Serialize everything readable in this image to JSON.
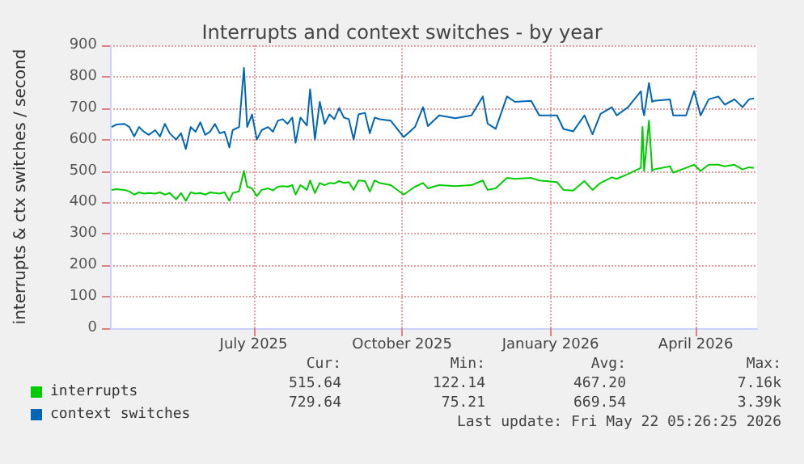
{
  "chart_data": {
    "type": "line",
    "title": "Interrupts and context switches - by year",
    "ylabel": "interrupts & ctx switches / second",
    "x": [
      "2025-04-19",
      "2025-04-22",
      "2025-04-27",
      "2025-04-30",
      "2025-05-03",
      "2025-05-06",
      "2025-05-09",
      "2025-05-12",
      "2025-05-16",
      "2025-05-19",
      "2025-05-22",
      "2025-05-25",
      "2025-05-29",
      "2025-06-01",
      "2025-06-04",
      "2025-06-07",
      "2025-06-10",
      "2025-06-13",
      "2025-06-16",
      "2025-06-19",
      "2025-06-22",
      "2025-06-25",
      "2025-06-28",
      "2025-07-01",
      "2025-07-03",
      "2025-07-07",
      "2025-07-10",
      "2025-07-12",
      "2025-07-15",
      "2025-07-18",
      "2025-07-21",
      "2025-07-25",
      "2025-07-28",
      "2025-07-31",
      "2025-08-03",
      "2025-08-06",
      "2025-08-09",
      "2025-08-11",
      "2025-08-14",
      "2025-08-18",
      "2025-08-20",
      "2025-08-23",
      "2025-08-26",
      "2025-08-29",
      "2025-09-01",
      "2025-09-04",
      "2025-09-07",
      "2025-09-10",
      "2025-09-13",
      "2025-09-16",
      "2025-09-19",
      "2025-09-23",
      "2025-09-26",
      "2025-09-29",
      "2025-10-02",
      "2025-10-09",
      "2025-10-17",
      "2025-10-24",
      "2025-10-29",
      "2025-11-01",
      "2025-11-08",
      "2025-11-18",
      "2025-11-28",
      "2025-12-05",
      "2025-12-08",
      "2025-12-13",
      "2025-12-20",
      "2025-12-25",
      "2026-01-04",
      "2026-01-09",
      "2026-01-20",
      "2026-01-24",
      "2026-01-30",
      "2026-02-06",
      "2026-02-11",
      "2026-02-16",
      "2026-02-23",
      "2026-02-26",
      "2026-03-05",
      "2026-03-13",
      "2026-03-14",
      "2026-03-15",
      "2026-03-18",
      "2026-03-20",
      "2026-03-21",
      "2026-03-31",
      "2026-04-02",
      "2026-04-10",
      "2026-04-15",
      "2026-04-19",
      "2026-04-24",
      "2026-04-30",
      "2026-05-04",
      "2026-05-10",
      "2026-05-15",
      "2026-05-19",
      "2026-05-22"
    ],
    "series": [
      {
        "name": "interrupts",
        "color": "#00cc00",
        "values": [
          440,
          442,
          440,
          435,
          425,
          432,
          428,
          430,
          428,
          432,
          425,
          430,
          410,
          430,
          405,
          432,
          428,
          430,
          425,
          432,
          430,
          428,
          432,
          405,
          430,
          435,
          500,
          450,
          445,
          420,
          440,
          445,
          438,
          450,
          452,
          450,
          455,
          425,
          455,
          440,
          470,
          430,
          462,
          455,
          462,
          460,
          468,
          462,
          465,
          440,
          470,
          468,
          435,
          470,
          462,
          455,
          425,
          450,
          462,
          445,
          455,
          452,
          455,
          470,
          440,
          445,
          478,
          475,
          478,
          470,
          465,
          440,
          438,
          468,
          440,
          462,
          480,
          475,
          490,
          510,
          640,
          500,
          660,
          500,
          505,
          515,
          495,
          510,
          520,
          500,
          520,
          520,
          515,
          520,
          505,
          512,
          510
        ]
      },
      {
        "name": "context switches",
        "color": "#0066b3",
        "values": [
          640,
          648,
          650,
          640,
          610,
          640,
          625,
          615,
          630,
          610,
          650,
          620,
          600,
          620,
          570,
          640,
          625,
          655,
          615,
          625,
          650,
          620,
          625,
          575,
          630,
          640,
          828,
          640,
          680,
          600,
          630,
          640,
          625,
          660,
          665,
          650,
          670,
          590,
          670,
          645,
          760,
          600,
          720,
          650,
          680,
          665,
          700,
          670,
          665,
          600,
          680,
          685,
          620,
          670,
          665,
          660,
          608,
          640,
          703,
          643,
          677,
          668,
          677,
          737,
          651,
          634,
          737,
          720,
          723,
          677,
          677,
          634,
          626,
          677,
          617,
          682,
          703,
          677,
          703,
          754,
          700,
          677,
          780,
          720,
          723,
          728,
          677,
          677,
          754,
          677,
          728,
          737,
          711,
          728,
          703,
          728,
          731
        ]
      }
    ],
    "xlim": [
      "2025-04-18",
      "2026-05-24"
    ],
    "xticks": [
      {
        "value": "2025-07-16",
        "label": "July 2025"
      },
      {
        "value": "2025-10-16",
        "label": "October 2025"
      },
      {
        "value": "2026-01-16",
        "label": "January 2026"
      },
      {
        "value": "2026-04-16",
        "label": "April 2026"
      }
    ],
    "ylim": [
      0,
      900
    ],
    "yticks": [
      0,
      100,
      200,
      300,
      400,
      500,
      600,
      700,
      800,
      900
    ],
    "grid": true,
    "legend": "bottom left",
    "marker": "none",
    "line_style": "solid",
    "annotations": [
      "Cur:",
      "Min:",
      "Avg:",
      "Max:",
      "515.64",
      "122.14",
      "467.20",
      "7.16k",
      "729.64",
      "75.21",
      "669.54",
      "3.39k",
      "Last update: Fri May 22 05:26:25 2026"
    ]
  }
}
